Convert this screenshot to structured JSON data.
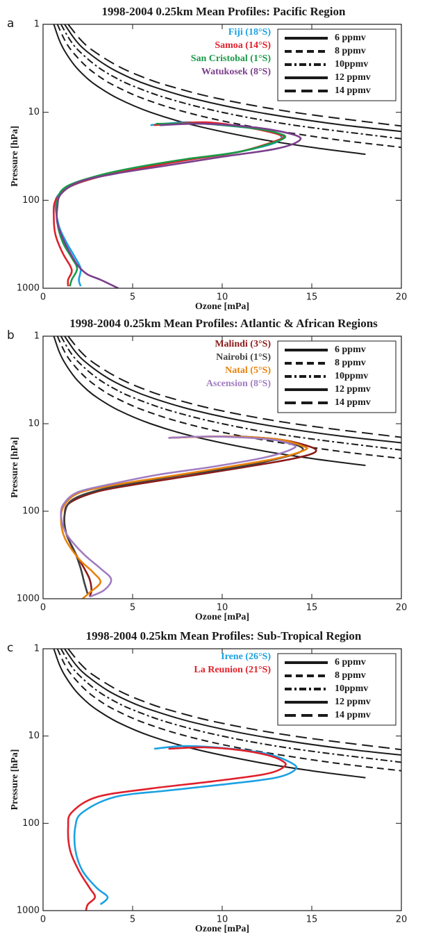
{
  "chart_data": [
    {
      "type": "line",
      "panel": "a",
      "title": "1998-2004 0.25km Mean Profiles: Pacific Region",
      "xlabel": "Ozone [mPa]",
      "ylabel": "Pressure [hPa]",
      "xlim": [
        0,
        20
      ],
      "ylim": [
        1000,
        1
      ],
      "yscale": "log",
      "xticks": [
        0,
        5,
        10,
        15,
        20
      ],
      "yticks": [
        1,
        10,
        100,
        1000
      ],
      "series": [
        {
          "name": "Fiji (18°S)",
          "color": "#1ba1e2",
          "x": [
            6,
            8,
            10,
            12,
            13.2,
            13,
            11,
            8,
            5,
            3,
            1.5,
            0.8,
            0.7,
            0.9,
            1.3,
            1.8,
            2.1,
            2,
            2.1
          ],
          "y": [
            14,
            13,
            14,
            15.5,
            18,
            22,
            28,
            35,
            45,
            55,
            70,
            90,
            120,
            200,
            300,
            450,
            600,
            800,
            950
          ]
        },
        {
          "name": "Samoa (14°S)",
          "color": "#e0202a",
          "x": [
            6.2,
            9,
            11.5,
            13.2,
            13.3,
            11,
            8,
            5,
            3,
            1.5,
            0.7,
            0.6,
            0.7,
            1.1,
            1.5,
            1.6,
            1.4,
            1.4
          ],
          "y": [
            14,
            13,
            15,
            18,
            20,
            28,
            35,
            45,
            55,
            70,
            100,
            160,
            250,
            400,
            550,
            650,
            800,
            950
          ]
        },
        {
          "name": "San Cristobal (1°S)",
          "color": "#1a9a48",
          "x": [
            6.3,
            9,
            11.5,
            13,
            13.4,
            11,
            8,
            5,
            3,
            1.3,
            0.8,
            0.8,
            1.1,
            1.6,
            1.9,
            1.6,
            1.5
          ],
          "y": [
            13.5,
            13.5,
            15,
            17,
            20,
            28,
            34,
            43,
            53,
            70,
            100,
            180,
            300,
            450,
            600,
            800,
            950
          ]
        },
        {
          "name": "Watukosek (8°S)",
          "color": "#7b3f8c",
          "x": [
            6.5,
            9,
            12,
            14,
            14.3,
            13,
            10,
            7,
            4,
            2,
            1,
            0.8,
            0.8,
            1.2,
            1.8,
            2.1,
            2.5,
            3.2,
            4.2
          ],
          "y": [
            14,
            13.5,
            15,
            18,
            21,
            26,
            32,
            40,
            50,
            62,
            85,
            120,
            180,
            300,
            500,
            600,
            700,
            800,
            1000
          ]
        }
      ],
      "isopleths": [
        {
          "name": "6 ppmv",
          "color": "#1a1a1a",
          "dash": "solid",
          "x": [
            0.6,
            0.9,
            1.2,
            1.8,
            2.4,
            3,
            4.2,
            6,
            8.4,
            12,
            15,
            18
          ],
          "y": [
            1,
            1.5,
            2,
            3,
            4,
            5,
            7,
            10,
            14,
            20,
            25,
            30
          ]
        },
        {
          "name": "8 ppmv",
          "color": "#1a1a1a",
          "dash": "dashed",
          "x": [
            0.8,
            1.2,
            1.6,
            2.4,
            3.2,
            4,
            5.6,
            8,
            11.2,
            16,
            20
          ],
          "y": [
            1,
            1.5,
            2,
            3,
            4,
            5,
            7,
            10,
            14,
            20,
            25
          ]
        },
        {
          "name": "10ppmv",
          "color": "#1a1a1a",
          "dash": "dashdot",
          "x": [
            1,
            1.5,
            2,
            3,
            4,
            5,
            7,
            10,
            14,
            20
          ],
          "y": [
            1,
            1.5,
            2,
            3,
            4,
            5,
            7,
            10,
            14,
            20
          ]
        },
        {
          "name": "12 ppmv",
          "color": "#1a1a1a",
          "dash": "solid",
          "x": [
            1.2,
            1.8,
            2.4,
            3.6,
            4.8,
            6,
            8.4,
            12,
            16.8,
            24
          ],
          "y": [
            1,
            1.5,
            2,
            3,
            4,
            5,
            7,
            10,
            14,
            20
          ]
        },
        {
          "name": "14 ppmv",
          "color": "#1a1a1a",
          "dash": "longdash",
          "x": [
            1.4,
            2.1,
            2.8,
            4.2,
            5.6,
            7,
            9.8,
            14,
            19.6,
            21
          ],
          "y": [
            1,
            1.5,
            2,
            3,
            4,
            5,
            7,
            10,
            14,
            15
          ]
        }
      ]
    },
    {
      "type": "line",
      "panel": "b",
      "title": "1998-2004 0.25km Mean Profiles: Atlantic & African Regions",
      "xlabel": "Ozone [mPa]",
      "ylabel": "Pressure [hPa]",
      "xlim": [
        0,
        20
      ],
      "ylim": [
        1000,
        1
      ],
      "yscale": "log",
      "xticks": [
        0,
        5,
        10,
        15,
        20
      ],
      "yticks": [
        1,
        10,
        100,
        1000
      ],
      "series": [
        {
          "name": "Malindi (3°S)",
          "color": "#8b1a1a",
          "x": [
            7,
            10,
            13,
            14.8,
            15.2,
            14,
            11,
            8,
            5,
            3,
            1.5,
            1.2,
            1.3,
            1.8,
            2.3,
            2.6,
            2.7,
            2.6
          ],
          "y": [
            14.5,
            14,
            15,
            18,
            21,
            25,
            32,
            40,
            50,
            60,
            80,
            110,
            180,
            300,
            450,
            600,
            800,
            950
          ]
        },
        {
          "name": "Nairobi (1°S)",
          "color": "#404040",
          "x": [
            11,
            13,
            14,
            14.5,
            13.5,
            11,
            8,
            5,
            3,
            1.6,
            1.2,
            1.3,
            1.8,
            2.1,
            2.3,
            2.5
          ],
          "y": [
            14,
            15,
            17,
            20,
            24,
            31,
            38,
            48,
            58,
            75,
            110,
            180,
            300,
            450,
            650,
            900
          ]
        },
        {
          "name": "Natal (5°S)",
          "color": "#e8820c",
          "x": [
            7,
            10,
            13,
            14.5,
            14.6,
            13,
            10,
            7,
            4,
            2,
            1.2,
            1,
            1.2,
            2,
            2.8,
            3.2,
            2.6,
            2.2
          ],
          "y": [
            14.5,
            14,
            15,
            18,
            20,
            25,
            32,
            40,
            50,
            62,
            85,
            120,
            200,
            350,
            500,
            650,
            850,
            1000
          ]
        },
        {
          "name": "Ascension (8°S)",
          "color": "#a07cc0",
          "x": [
            7,
            9.5,
            12.5,
            13.8,
            14,
            12.5,
            9.5,
            6.5,
            4,
            2,
            1.2,
            1,
            1.3,
            2.2,
            3.2,
            3.8,
            3.4,
            2.6
          ],
          "y": [
            14.5,
            14,
            15,
            17,
            19,
            24,
            31,
            38,
            48,
            60,
            80,
            110,
            180,
            300,
            450,
            600,
            800,
            950
          ]
        }
      ],
      "isopleths": [
        {
          "name": "6 ppmv",
          "color": "#1a1a1a",
          "dash": "solid",
          "x": [
            0.6,
            0.9,
            1.2,
            1.8,
            2.4,
            3,
            4.2,
            6,
            8.4,
            12,
            15,
            18
          ],
          "y": [
            1,
            1.5,
            2,
            3,
            4,
            5,
            7,
            10,
            14,
            20,
            25,
            30
          ]
        },
        {
          "name": "8 ppmv",
          "color": "#1a1a1a",
          "dash": "dashed",
          "x": [
            0.8,
            1.2,
            1.6,
            2.4,
            3.2,
            4,
            5.6,
            8,
            11.2,
            16,
            20
          ],
          "y": [
            1,
            1.5,
            2,
            3,
            4,
            5,
            7,
            10,
            14,
            20,
            25
          ]
        },
        {
          "name": "10ppmv",
          "color": "#1a1a1a",
          "dash": "dashdot",
          "x": [
            1,
            1.5,
            2,
            3,
            4,
            5,
            7,
            10,
            14,
            20
          ],
          "y": [
            1,
            1.5,
            2,
            3,
            4,
            5,
            7,
            10,
            14,
            20
          ]
        },
        {
          "name": "12 ppmv",
          "color": "#1a1a1a",
          "dash": "solid",
          "x": [
            1.2,
            1.8,
            2.4,
            3.6,
            4.8,
            6,
            8.4,
            12,
            16.8,
            24
          ],
          "y": [
            1,
            1.5,
            2,
            3,
            4,
            5,
            7,
            10,
            14,
            20
          ]
        },
        {
          "name": "14 ppmv",
          "color": "#1a1a1a",
          "dash": "longdash",
          "x": [
            1.4,
            2.1,
            2.8,
            4.2,
            5.6,
            7,
            9.8,
            14,
            19.6,
            21
          ],
          "y": [
            1,
            1.5,
            2,
            3,
            4,
            5,
            7,
            10,
            14,
            15
          ]
        }
      ]
    },
    {
      "type": "line",
      "panel": "c",
      "title": "1998-2004 0.25km Mean Profiles: Sub-Tropical Region",
      "xlabel": "Ozone [mPa]",
      "ylabel": "Pressure [hPa]",
      "xlim": [
        0,
        20
      ],
      "ylim": [
        1000,
        1
      ],
      "yscale": "log",
      "xticks": [
        0,
        5,
        10,
        15,
        20
      ],
      "yticks": [
        1,
        10,
        100,
        1000
      ],
      "series": [
        {
          "name": "Irene (26°S)",
          "color": "#1ba1e2",
          "x": [
            6.2,
            8,
            10.5,
            12.5,
            13.8,
            14.1,
            13,
            10,
            7,
            4,
            2.2,
            1.8,
            1.8,
            2.2,
            3,
            3.6,
            3.2
          ],
          "y": [
            14,
            13,
            14,
            16,
            20,
            24,
            30,
            36,
            42,
            50,
            75,
            110,
            200,
            350,
            550,
            700,
            850
          ]
        },
        {
          "name": "La Reunion (21°S)",
          "color": "#e0202a",
          "x": [
            7,
            9,
            11,
            12.5,
            13.3,
            13.5,
            12.5,
            9.5,
            6,
            3,
            1.6,
            1.4,
            1.5,
            2,
            2.6,
            2.9,
            2.5,
            2.4
          ],
          "y": [
            14,
            13.5,
            14.5,
            16.5,
            19,
            22,
            27,
            33,
            40,
            50,
            75,
            110,
            200,
            350,
            550,
            700,
            850,
            1000
          ]
        }
      ],
      "isopleths": [
        {
          "name": "6 ppmv",
          "color": "#1a1a1a",
          "dash": "solid",
          "x": [
            0.6,
            0.9,
            1.2,
            1.8,
            2.4,
            3,
            4.2,
            6,
            8.4,
            12,
            15,
            18
          ],
          "y": [
            1,
            1.5,
            2,
            3,
            4,
            5,
            7,
            10,
            14,
            20,
            25,
            30
          ]
        },
        {
          "name": "8 ppmv",
          "color": "#1a1a1a",
          "dash": "dashed",
          "x": [
            0.8,
            1.2,
            1.6,
            2.4,
            3.2,
            4,
            5.6,
            8,
            11.2,
            16,
            20
          ],
          "y": [
            1,
            1.5,
            2,
            3,
            4,
            5,
            7,
            10,
            14,
            20,
            25
          ]
        },
        {
          "name": "10ppmv",
          "color": "#1a1a1a",
          "dash": "dashdot",
          "x": [
            1,
            1.5,
            2,
            3,
            4,
            5,
            7,
            10,
            14,
            20
          ],
          "y": [
            1,
            1.5,
            2,
            3,
            4,
            5,
            7,
            10,
            14,
            20
          ]
        },
        {
          "name": "12 ppmv",
          "color": "#1a1a1a",
          "dash": "solid",
          "x": [
            1.2,
            1.8,
            2.4,
            3.6,
            4.8,
            6,
            8.4,
            12,
            16.8,
            24
          ],
          "y": [
            1,
            1.5,
            2,
            3,
            4,
            5,
            7,
            10,
            14,
            20
          ]
        },
        {
          "name": "14 ppmv",
          "color": "#1a1a1a",
          "dash": "longdash",
          "x": [
            1.4,
            2.1,
            2.8,
            4.2,
            5.6,
            7,
            9.8,
            14,
            19.6,
            21
          ],
          "y": [
            1,
            1.5,
            2,
            3,
            4,
            5,
            7,
            10,
            14,
            15
          ]
        }
      ]
    }
  ]
}
